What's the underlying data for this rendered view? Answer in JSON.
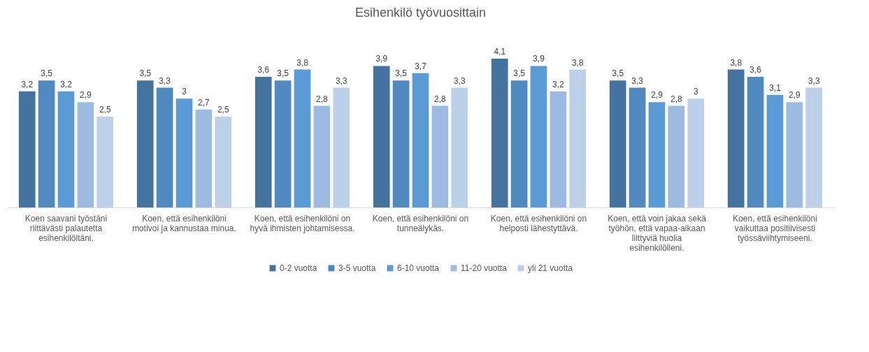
{
  "chart_data": {
    "type": "bar",
    "title": "Esihenkilö työvuosittain",
    "categories": [
      "Koen saavani työstäni riittävästi palautetta esihenkilöltäni.",
      "Koen, että esihenkilöni motivoi ja kannustaa minua.",
      "Koen, että esihenkilöni on hyvä ihmisten johtamisessa.",
      "Koen, että esihenkilöni on tunneälykäs.",
      "Koen, että esihenkilöni on helposti lähestyttävä.",
      "Koen, että voin jakaa sekä työhön, että vapaa-aikaan liittyviä huolia esihenkilölleni.",
      "Koen, että esihenkilöni vaikuttaa positiivisesti työssäviihtymiseeni."
    ],
    "series": [
      {
        "name": "0-2 vuotta",
        "color": "#44739f",
        "values": [
          3.2,
          3.5,
          3.6,
          3.9,
          4.1,
          3.5,
          3.8
        ],
        "value_labels": [
          "3,2",
          "3,5",
          "3,6",
          "3,9",
          "4,1",
          "3,5",
          "3,8"
        ]
      },
      {
        "name": "3-5 vuotta",
        "color": "#4f89c0",
        "values": [
          3.5,
          3.3,
          3.5,
          3.5,
          3.5,
          3.3,
          3.6
        ],
        "value_labels": [
          "3,5",
          "3,3",
          "3,5",
          "3,5",
          "3,5",
          "3,3",
          "3,6"
        ]
      },
      {
        "name": "6-10 vuotta",
        "color": "#5b9bd5",
        "values": [
          3.2,
          3,
          3.8,
          3.7,
          3.9,
          2.9,
          3.1
        ],
        "value_labels": [
          "3,2",
          "3",
          "3,8",
          "3,7",
          "3,9",
          "2,9",
          "3,1"
        ]
      },
      {
        "name": "11-20 vuotta",
        "color": "#9dbae0",
        "values": [
          2.9,
          2.7,
          2.8,
          2.8,
          3.2,
          2.8,
          2.9
        ],
        "value_labels": [
          "2,9",
          "2,7",
          "2,8",
          "2,8",
          "3,2",
          "2,8",
          "2,9"
        ]
      },
      {
        "name": "yli 21 vuotta",
        "color": "#bdd0ea",
        "values": [
          2.5,
          2.5,
          3.3,
          3.3,
          3.8,
          3,
          3.3
        ],
        "value_labels": [
          "2,5",
          "2,5",
          "3,3",
          "3,3",
          "3,8",
          "3",
          "3,3"
        ]
      }
    ],
    "grid": false,
    "legend": "bottom"
  }
}
